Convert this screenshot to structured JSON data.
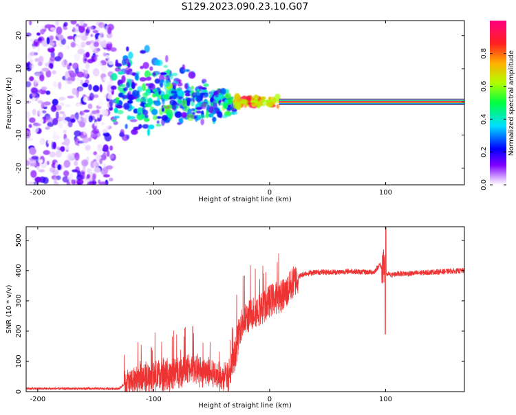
{
  "page_title": "S129.2023.090.23.10.G07",
  "chart_data": [
    {
      "type": "heatmap",
      "xlabel": "Height of straight line (km)",
      "ylabel": "Frequency (Hz)",
      "xlim": [
        -210,
        168
      ],
      "ylim": [
        -25,
        24.5
      ],
      "xticks": [
        -200,
        -100,
        0,
        100
      ],
      "yticks": [
        -20,
        -10,
        0,
        10,
        20
      ],
      "grid": false,
      "colorbar": {
        "label": "Normalized spectral amplitude",
        "range": [
          0,
          1
        ],
        "ticks": [
          0.0,
          0.2,
          0.4,
          0.6,
          0.8
        ],
        "colors": [
          "#ffffff",
          "#d8b0ff",
          "#8000ff",
          "#0000ff",
          "#00e0ff",
          "#00ff40",
          "#b0ff00",
          "#ffb000",
          "#ff2020",
          "#ff0080"
        ]
      },
      "regions": [
        {
          "name": "scattered noise",
          "x": [
            -210,
            -135
          ],
          "frequency": [
            -25,
            24.5
          ],
          "amplitude": [
            0.0,
            0.2
          ]
        },
        {
          "name": "widening signal",
          "x": [
            -135,
            -30
          ],
          "frequency": [
            -15,
            18
          ],
          "amplitude": [
            0.1,
            0.5
          ]
        },
        {
          "name": "converging signal",
          "x": [
            -30,
            8
          ],
          "frequency": [
            -2,
            2
          ],
          "amplitude": [
            0.6,
            0.95
          ]
        },
        {
          "name": "steady carrier",
          "x": [
            8,
            168
          ],
          "frequency": [
            0,
            0
          ],
          "amplitude": [
            0.9,
            1.0
          ]
        }
      ]
    },
    {
      "type": "line",
      "xlabel": "Height of straight line (km)",
      "ylabel": "SNR (10 * v/v)",
      "xlim": [
        -210,
        168
      ],
      "ylim": [
        0,
        545
      ],
      "xticks": [
        -200,
        -100,
        0,
        100
      ],
      "yticks": [
        0,
        100,
        200,
        300,
        400,
        500
      ],
      "grid": false,
      "color": "#ee3333",
      "x": [
        -210,
        -180,
        -150,
        -130,
        -125,
        -120,
        -110,
        -100,
        -90,
        -80,
        -70,
        -60,
        -50,
        -40,
        -35,
        -30,
        -28,
        -25,
        -20,
        -15,
        -10,
        -5,
        0,
        5,
        10,
        15,
        20,
        25,
        30,
        40,
        50,
        60,
        70,
        80,
        90,
        95,
        100,
        105,
        110,
        120,
        140,
        168
      ],
      "y": [
        10,
        10,
        10,
        10,
        25,
        30,
        45,
        50,
        55,
        65,
        75,
        70,
        60,
        50,
        45,
        120,
        160,
        220,
        240,
        260,
        270,
        280,
        300,
        310,
        315,
        330,
        360,
        380,
        390,
        395,
        395,
        395,
        398,
        395,
        395,
        420,
        390,
        385,
        390,
        390,
        395,
        400
      ]
    }
  ]
}
